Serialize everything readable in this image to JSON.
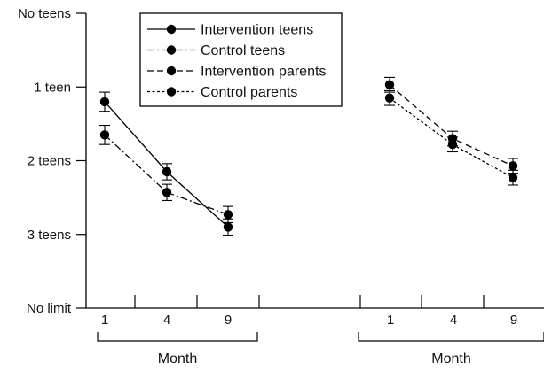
{
  "chart_data": {
    "type": "line",
    "y_tick_labels": [
      "No teens",
      "1 teen",
      "2 teens",
      "3 teens",
      "No limit"
    ],
    "y_tick_values": [
      0,
      1,
      2,
      3,
      4
    ],
    "y_inverted": true,
    "ylim": [
      0,
      4
    ],
    "panels": [
      {
        "x_categories": [
          "1",
          "4",
          "9"
        ],
        "xlabel": "Month",
        "series": [
          {
            "name": "Intervention teens",
            "style": "solid",
            "values": [
              1.2,
              2.15,
              2.9
            ],
            "error": [
              0.13,
              0.11,
              0.11
            ]
          },
          {
            "name": "Control teens",
            "style": "dash-dot",
            "values": [
              1.65,
              2.43,
              2.73
            ],
            "error": [
              0.13,
              0.11,
              0.11
            ]
          }
        ]
      },
      {
        "x_categories": [
          "1",
          "4",
          "9"
        ],
        "xlabel": "Month",
        "series": [
          {
            "name": "Intervention parents",
            "style": "dashed",
            "values": [
              0.97,
              1.7,
              2.07
            ],
            "error": [
              0.1,
              0.1,
              0.1
            ]
          },
          {
            "name": "Control parents",
            "style": "dotted",
            "values": [
              1.15,
              1.78,
              2.23
            ],
            "error": [
              0.1,
              0.1,
              0.1
            ]
          }
        ]
      }
    ],
    "legend": {
      "position": "top-center",
      "entries": [
        {
          "label": "Intervention teens",
          "style": "solid"
        },
        {
          "label": "Control teens",
          "style": "dash-dot"
        },
        {
          "label": "Intervention parents",
          "style": "dashed"
        },
        {
          "label": "Control parents",
          "style": "dotted"
        }
      ]
    },
    "colors": {
      "ink": "#000000",
      "background": "#ffffff"
    }
  }
}
